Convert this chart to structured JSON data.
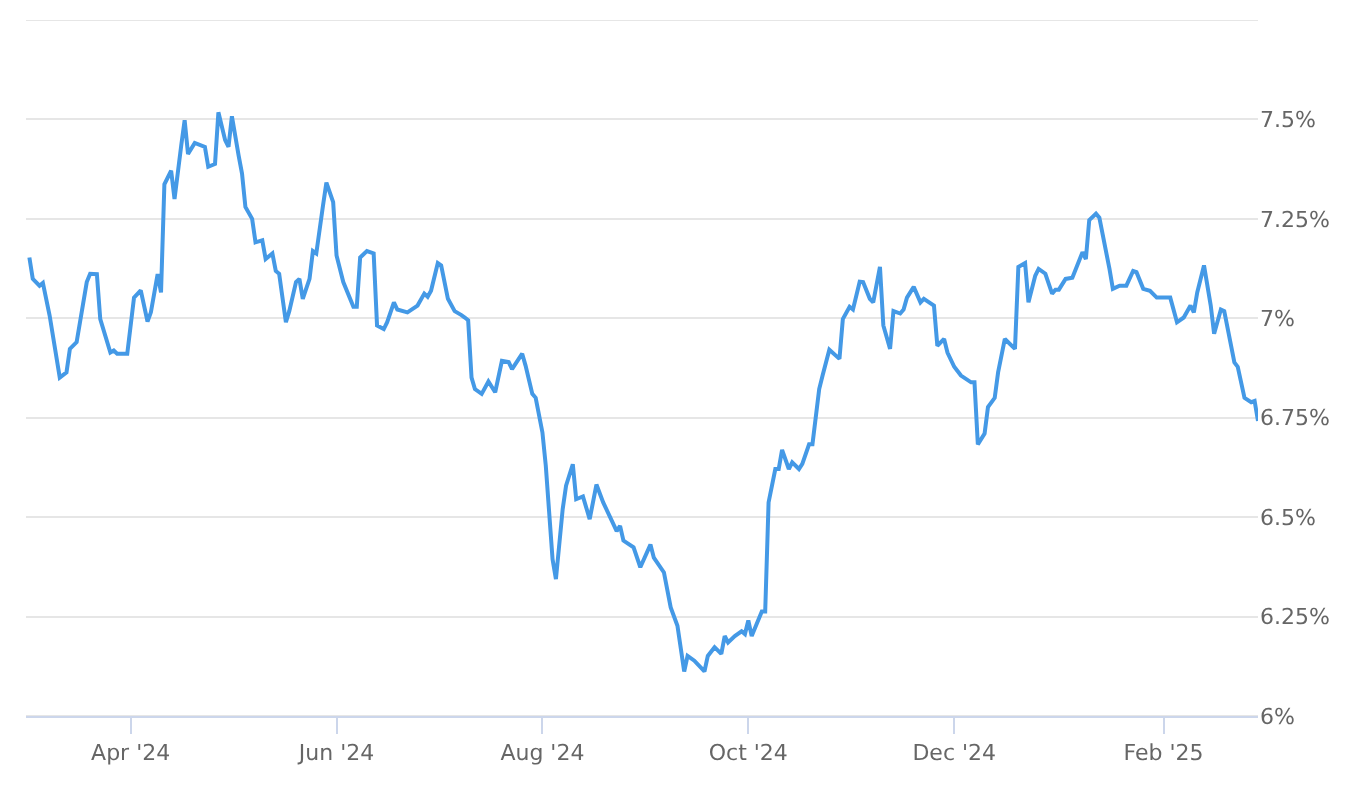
{
  "chart_data": {
    "type": "line",
    "x": [
      "2024-03-02",
      "2024-03-03",
      "2024-03-05",
      "2024-03-06",
      "2024-03-08",
      "2024-03-11",
      "2024-03-13",
      "2024-03-14",
      "2024-03-16",
      "2024-03-19",
      "2024-03-20",
      "2024-03-22",
      "2024-03-23",
      "2024-03-26",
      "2024-03-27",
      "2024-03-28",
      "2024-03-31",
      "2024-04-02",
      "2024-04-04",
      "2024-04-06",
      "2024-04-07",
      "2024-04-09",
      "2024-04-10",
      "2024-04-11",
      "2024-04-13",
      "2024-04-14",
      "2024-04-16",
      "2024-04-17",
      "2024-04-18",
      "2024-04-20",
      "2024-04-23",
      "2024-04-24",
      "2024-04-26",
      "2024-04-27",
      "2024-04-29",
      "2024-04-30",
      "2024-05-01",
      "2024-05-03",
      "2024-05-04",
      "2024-05-05",
      "2024-05-07",
      "2024-05-08",
      "2024-05-10",
      "2024-05-11",
      "2024-05-13",
      "2024-05-14",
      "2024-05-15",
      "2024-05-17",
      "2024-05-18",
      "2024-05-20",
      "2024-05-21",
      "2024-05-22",
      "2024-05-24",
      "2024-05-25",
      "2024-05-26",
      "2024-05-28",
      "2024-05-29",
      "2024-05-31",
      "2024-06-01",
      "2024-06-03",
      "2024-06-06",
      "2024-06-07",
      "2024-06-08",
      "2024-06-10",
      "2024-06-12",
      "2024-06-13",
      "2024-06-15",
      "2024-06-16",
      "2024-06-18",
      "2024-06-19",
      "2024-06-22",
      "2024-06-25",
      "2024-06-27",
      "2024-06-28",
      "2024-06-29",
      "2024-07-01",
      "2024-07-02",
      "2024-07-04",
      "2024-07-06",
      "2024-07-08",
      "2024-07-09",
      "2024-07-10",
      "2024-07-11",
      "2024-07-12",
      "2024-07-14",
      "2024-07-16",
      "2024-07-18",
      "2024-07-20",
      "2024-07-22",
      "2024-07-23",
      "2024-07-26",
      "2024-07-27",
      "2024-07-29",
      "2024-07-30",
      "2024-08-01",
      "2024-08-02",
      "2024-08-04",
      "2024-08-05",
      "2024-08-07",
      "2024-08-08",
      "2024-08-10",
      "2024-08-11",
      "2024-08-13",
      "2024-08-15",
      "2024-08-17",
      "2024-08-19",
      "2024-08-23",
      "2024-08-24",
      "2024-08-25",
      "2024-08-28",
      "2024-08-30",
      "2024-09-02",
      "2024-09-03",
      "2024-09-06",
      "2024-09-08",
      "2024-09-10",
      "2024-09-12",
      "2024-09-13",
      "2024-09-15",
      "2024-09-18",
      "2024-09-19",
      "2024-09-21",
      "2024-09-23",
      "2024-09-24",
      "2024-09-25",
      "2024-09-27",
      "2024-09-29",
      "2024-09-30",
      "2024-10-01",
      "2024-10-02",
      "2024-10-05",
      "2024-10-06",
      "2024-10-07",
      "2024-10-09",
      "2024-10-10",
      "2024-10-11",
      "2024-10-13",
      "2024-10-14",
      "2024-10-16",
      "2024-10-17",
      "2024-10-19",
      "2024-10-20",
      "2024-10-22",
      "2024-10-23",
      "2024-10-25",
      "2024-10-28",
      "2024-10-29",
      "2024-10-31",
      "2024-11-01",
      "2024-11-03",
      "2024-11-04",
      "2024-11-06",
      "2024-11-07",
      "2024-11-09",
      "2024-11-10",
      "2024-11-12",
      "2024-11-13",
      "2024-11-15",
      "2024-11-16",
      "2024-11-17",
      "2024-11-19",
      "2024-11-21",
      "2024-11-22",
      "2024-11-25",
      "2024-11-26",
      "2024-11-28",
      "2024-11-29",
      "2024-12-01",
      "2024-12-03",
      "2024-12-06",
      "2024-12-07",
      "2024-12-08",
      "2024-12-10",
      "2024-12-11",
      "2024-12-13",
      "2024-12-14",
      "2024-12-16",
      "2024-12-19",
      "2024-12-20",
      "2024-12-22",
      "2024-12-23",
      "2024-12-25",
      "2024-12-26",
      "2024-12-28",
      "2024-12-30",
      "2024-12-31",
      "2025-01-01",
      "2025-01-03",
      "2025-01-05",
      "2025-01-08",
      "2025-01-09",
      "2025-01-10",
      "2025-01-12",
      "2025-01-13",
      "2025-01-16",
      "2025-01-17",
      "2025-01-19",
      "2025-01-21",
      "2025-01-23",
      "2025-01-24",
      "2025-01-26",
      "2025-01-28",
      "2025-01-30",
      "2025-02-03",
      "2025-02-05",
      "2025-02-07",
      "2025-02-09",
      "2025-02-10",
      "2025-02-11",
      "2025-02-13",
      "2025-02-15",
      "2025-02-16",
      "2025-02-18",
      "2025-02-19",
      "2025-02-22",
      "2025-02-23",
      "2025-02-25",
      "2025-02-27",
      "2025-02-28",
      "2025-03-01"
    ],
    "values": [
      7.153,
      7.099,
      7.082,
      7.089,
      7.007,
      6.851,
      6.864,
      6.923,
      6.94,
      7.091,
      7.112,
      7.111,
      6.998,
      6.914,
      6.919,
      6.911,
      6.911,
      7.052,
      7.07,
      6.992,
      7.015,
      7.111,
      7.065,
      7.337,
      7.371,
      7.3,
      7.435,
      7.498,
      7.413,
      7.441,
      7.431,
      7.381,
      7.388,
      7.518,
      7.448,
      7.431,
      7.508,
      7.409,
      7.364,
      7.28,
      7.25,
      7.191,
      7.196,
      7.149,
      7.163,
      7.119,
      7.112,
      6.99,
      7.018,
      7.091,
      7.099,
      7.049,
      7.099,
      7.169,
      7.163,
      7.284,
      7.341,
      7.292,
      7.158,
      7.091,
      7.029,
      7.029,
      7.153,
      7.169,
      7.163,
      6.982,
      6.973,
      6.99,
      7.04,
      7.022,
      7.015,
      7.032,
      7.062,
      7.054,
      7.069,
      7.139,
      7.133,
      7.049,
      7.018,
      7.008,
      7.002,
      6.995,
      6.851,
      6.822,
      6.81,
      6.841,
      6.814,
      6.893,
      6.89,
      6.872,
      6.911,
      6.881,
      6.81,
      6.8,
      6.713,
      6.629,
      6.394,
      6.344,
      6.52,
      6.579,
      6.633,
      6.545,
      6.552,
      6.495,
      6.582,
      6.537,
      6.465,
      6.478,
      6.441,
      6.424,
      6.374,
      6.431,
      6.398,
      6.361,
      6.273,
      6.227,
      6.112,
      6.151,
      6.139,
      6.112,
      6.151,
      6.173,
      6.156,
      6.201,
      6.185,
      6.201,
      6.213,
      6.206,
      6.24,
      6.201,
      6.263,
      6.263,
      6.537,
      6.621,
      6.621,
      6.669,
      6.621,
      6.638,
      6.621,
      6.634,
      6.683,
      6.683,
      6.822,
      6.856,
      6.921,
      6.898,
      6.998,
      7.029,
      7.022,
      7.092,
      7.091,
      7.049,
      7.04,
      7.129,
      6.982,
      6.923,
      7.018,
      7.012,
      7.022,
      7.052,
      7.079,
      7.04,
      7.049,
      7.032,
      6.931,
      6.948,
      6.914,
      6.878,
      6.856,
      6.839,
      6.839,
      6.683,
      6.71,
      6.777,
      6.8,
      6.864,
      6.948,
      6.923,
      7.129,
      7.139,
      7.04,
      7.107,
      7.124,
      7.112,
      7.062,
      7.072,
      7.072,
      7.099,
      7.102,
      7.166,
      7.149,
      7.247,
      7.263,
      7.253,
      7.124,
      7.074,
      7.082,
      7.082,
      7.119,
      7.116,
      7.074,
      7.069,
      7.052,
      7.052,
      6.99,
      7.002,
      7.032,
      7.015,
      7.065,
      7.133,
      7.032,
      6.961,
      7.022,
      7.018,
      6.889,
      6.878,
      6.8,
      6.789,
      6.792,
      6.742
    ],
    "color": "#4499e6",
    "xlim": [
      "2024-03-01",
      "2025-03-01"
    ],
    "xticks": [
      {
        "value": "2024-04-01",
        "label": "Apr '24"
      },
      {
        "value": "2024-06-01",
        "label": "Jun '24"
      },
      {
        "value": "2024-08-01",
        "label": "Aug '24"
      },
      {
        "value": "2024-10-01",
        "label": "Oct '24"
      },
      {
        "value": "2024-12-01",
        "label": "Dec '24"
      },
      {
        "value": "2025-02-01",
        "label": "Feb '25"
      }
    ],
    "ylim": [
      6,
      7.75
    ],
    "yticks": [
      {
        "value": 6,
        "label": "6%"
      },
      {
        "value": 6.25,
        "label": "6.25%"
      },
      {
        "value": 6.5,
        "label": "6.5%"
      },
      {
        "value": 6.75,
        "label": "6.75%"
      },
      {
        "value": 7,
        "label": "7%"
      },
      {
        "value": 7.25,
        "label": "7.25%"
      },
      {
        "value": 7.5,
        "label": "7.5%"
      },
      {
        "value": 7.75,
        "label": null
      }
    ],
    "grid": "y",
    "marker": "none",
    "line_style": "solid"
  }
}
